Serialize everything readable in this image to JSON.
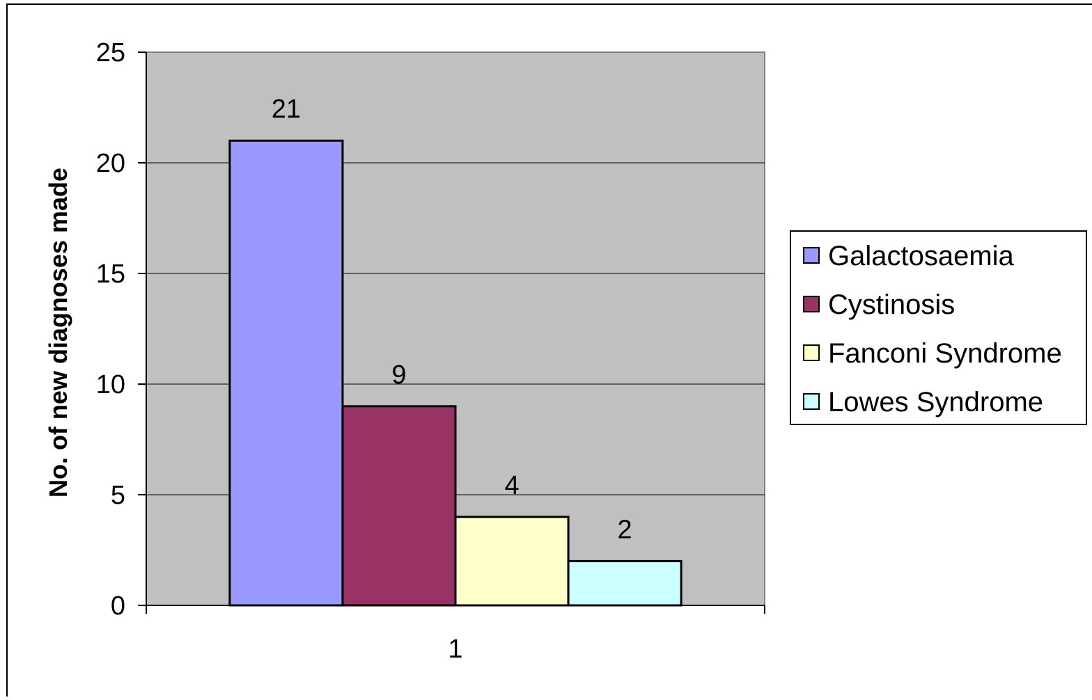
{
  "chart_data": {
    "type": "bar",
    "title": "",
    "xlabel": "",
    "ylabel": "No. of new diagnoses made",
    "categories": [
      "1"
    ],
    "ylim": [
      0,
      25
    ],
    "yticks": [
      0,
      5,
      10,
      15,
      20,
      25
    ],
    "grid": true,
    "legend_position": "right",
    "plot_background": "#c0c0c0",
    "series": [
      {
        "name": "Galactosaemia",
        "values": [
          21
        ],
        "color": "#9999ff"
      },
      {
        "name": "Cystinosis",
        "values": [
          9
        ],
        "color": "#993366"
      },
      {
        "name": "Fanconi Syndrome",
        "values": [
          4
        ],
        "color": "#ffffcc"
      },
      {
        "name": "Lowes Syndrome",
        "values": [
          2
        ],
        "color": "#ccffff"
      }
    ]
  }
}
